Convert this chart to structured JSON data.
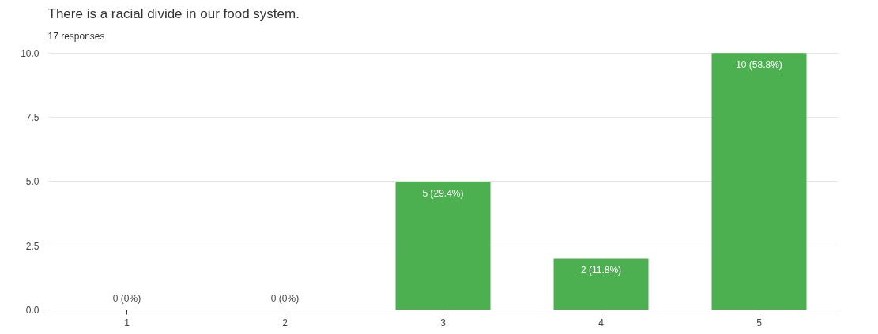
{
  "chart_data": {
    "type": "bar",
    "title": "There is a racial divide in our food system.",
    "subtitle": "17 responses",
    "categories": [
      "1",
      "2",
      "3",
      "4",
      "5"
    ],
    "values": [
      0,
      0,
      5,
      2,
      10
    ],
    "color": "#4caf50",
    "value_labels": [
      "0 (0%)",
      "0 (0%)",
      "5 (29.4%)",
      "2 (11.8%)",
      "10 (58.8%)"
    ],
    "ylim": [
      0,
      10
    ],
    "yticks": [
      {
        "value": 0,
        "label": "0.0"
      },
      {
        "value": 2.5,
        "label": "2.5"
      },
      {
        "value": 5,
        "label": "5.0"
      },
      {
        "value": 7.5,
        "label": "7.5"
      },
      {
        "value": 10,
        "label": "10.0"
      }
    ],
    "grid": "y"
  }
}
